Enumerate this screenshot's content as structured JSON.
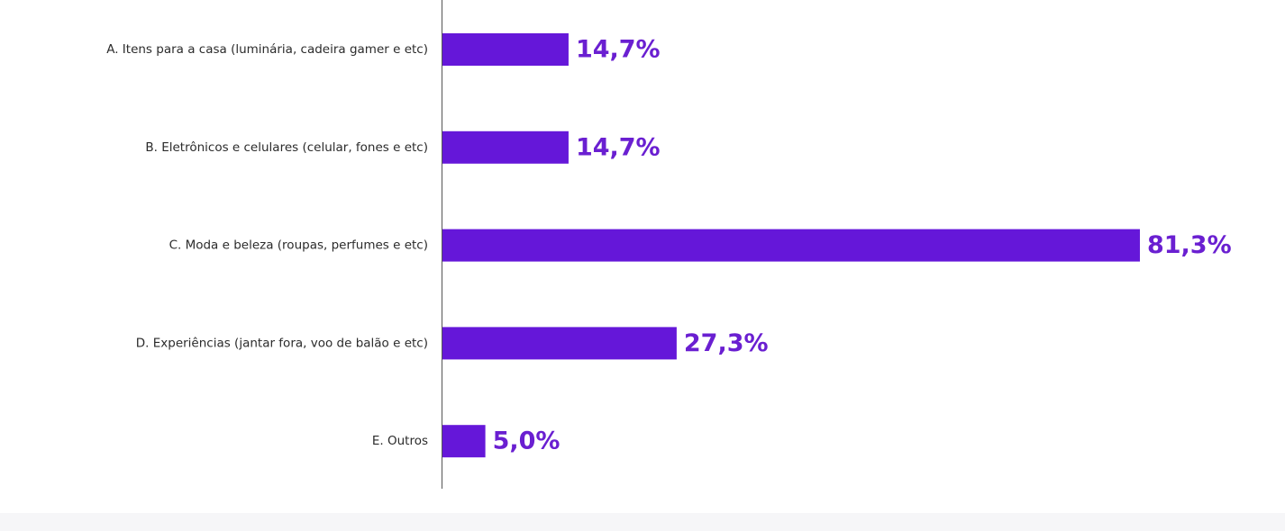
{
  "chart_data": {
    "type": "bar",
    "orientation": "horizontal",
    "categories": [
      "A. Itens para a casa (luminária, cadeira gamer e etc)",
      "B. Eletrônicos e celulares (celular, fones e etc)",
      "C. Moda e beleza (roupas, perfumes e etc)",
      "D. Experiências (jantar fora, voo de balão e etc)",
      "E. Outros"
    ],
    "values": [
      14.7,
      14.7,
      81.3,
      27.3,
      5.0
    ],
    "value_labels": [
      "14,7%",
      "14,7%",
      "81,3%",
      "27,3%",
      "5,0%"
    ],
    "color": "#6517d9"
  }
}
